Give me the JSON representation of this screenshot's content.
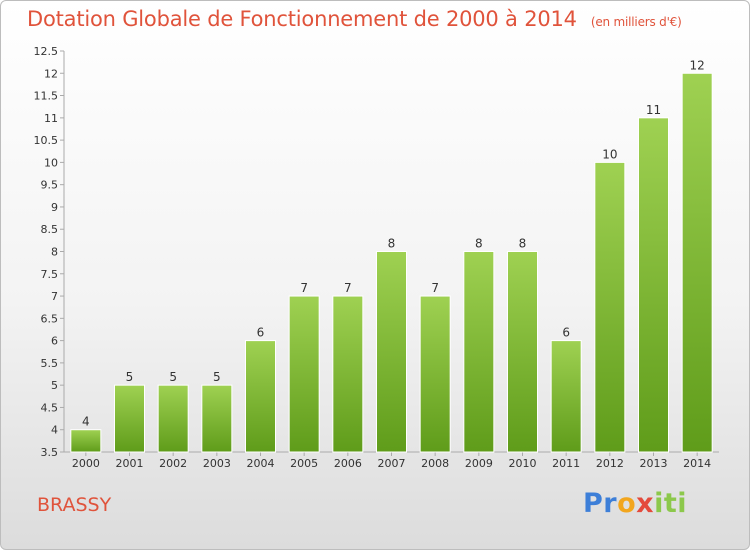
{
  "header": {
    "title": "Dotation Globale de Fonctionnement de 2000 à 2014",
    "unit": "(en milliers d'€)"
  },
  "footer": {
    "commune": "BRASSY",
    "logo": "Proxiti"
  },
  "colors": {
    "title": "#e0533b",
    "bar_top": "#9fd152",
    "bar_bottom": "#5f9c1a",
    "axis": "#aaaaaa"
  },
  "chart_data": {
    "type": "bar",
    "title": "Dotation Globale de Fonctionnement de 2000 à 2014",
    "xlabel": "",
    "ylabel": "",
    "categories": [
      "2000",
      "2001",
      "2002",
      "2003",
      "2004",
      "2005",
      "2006",
      "2007",
      "2008",
      "2009",
      "2010",
      "2011",
      "2012",
      "2013",
      "2014"
    ],
    "values": [
      4,
      5,
      5,
      5,
      6,
      7,
      7,
      8,
      7,
      8,
      8,
      6,
      10,
      11,
      12
    ],
    "ylim": [
      3.5,
      12.5
    ],
    "yticks": [
      "3.5",
      "4",
      "4.5",
      "5",
      "5.5",
      "6",
      "6.5",
      "7",
      "7.5",
      "8",
      "8.5",
      "9",
      "9.5",
      "10",
      "10.5",
      "11",
      "11.5",
      "12",
      "12.5"
    ],
    "grid": false,
    "legend": "none"
  }
}
